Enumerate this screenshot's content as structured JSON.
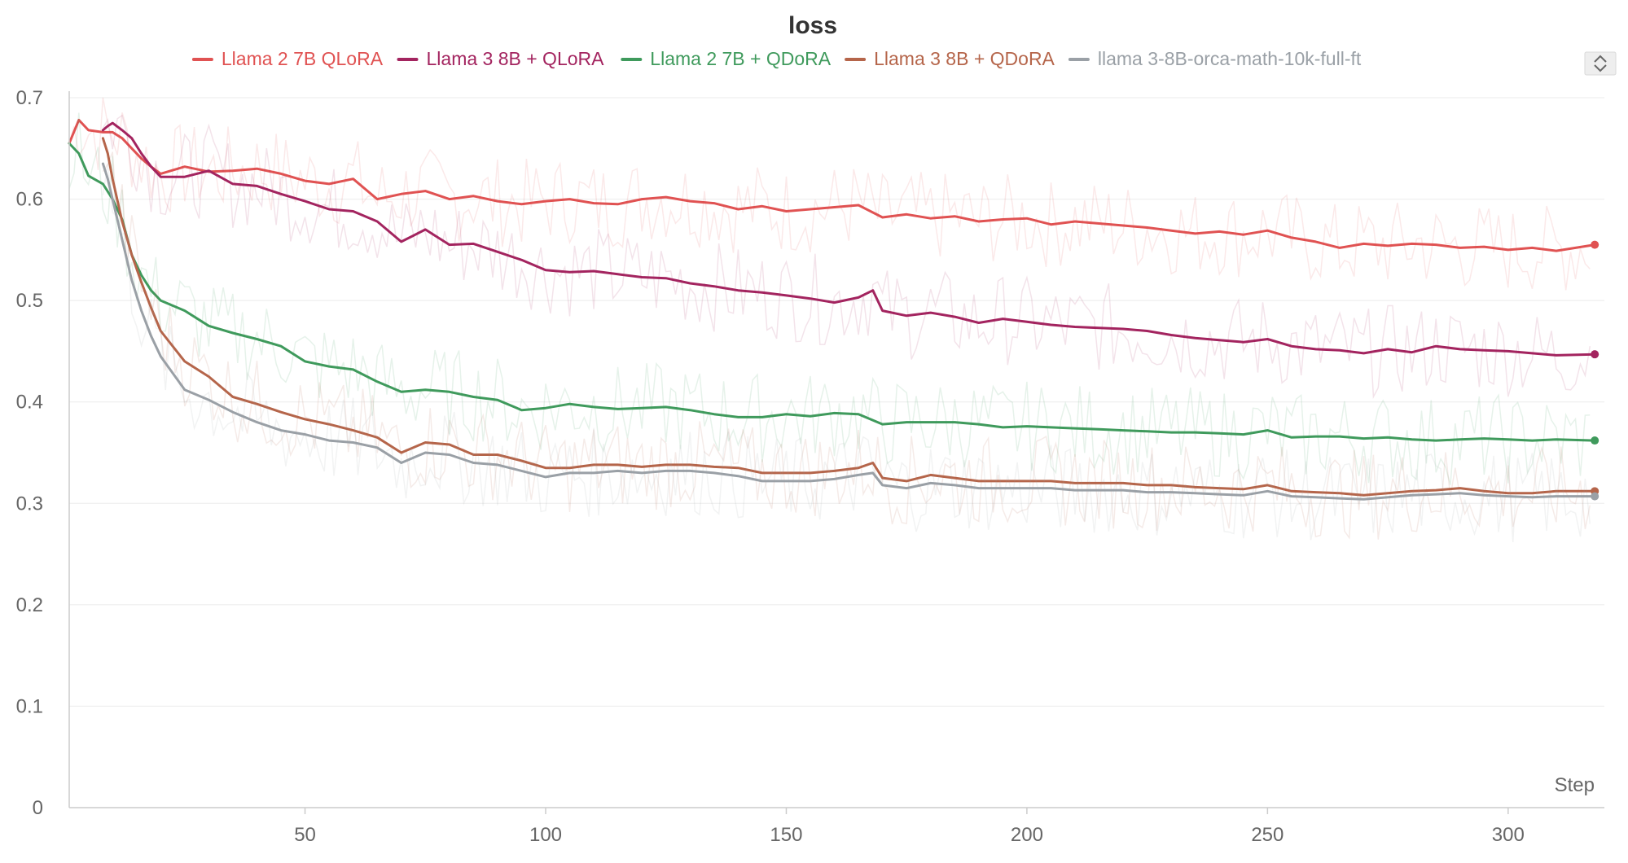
{
  "chart_data": {
    "type": "line",
    "title": "loss",
    "xlabel": "Step",
    "ylabel": "",
    "xlim": [
      1,
      320
    ],
    "ylim": [
      0,
      0.7
    ],
    "xticks": [
      50,
      100,
      150,
      200,
      250,
      300
    ],
    "yticks": [
      0,
      0.1,
      0.2,
      0.3,
      0.4,
      0.5,
      0.6,
      0.7
    ],
    "grid": true,
    "legend_position": "top",
    "series": [
      {
        "name": "Llama 2 7B QLoRA",
        "color": "#e05252",
        "x": [
          1,
          3,
          5,
          8,
          10,
          12,
          14,
          16,
          18,
          20,
          25,
          30,
          35,
          40,
          45,
          50,
          55,
          60,
          65,
          70,
          75,
          80,
          85,
          90,
          95,
          100,
          105,
          110,
          115,
          120,
          125,
          130,
          135,
          140,
          145,
          150,
          155,
          160,
          165,
          170,
          175,
          180,
          185,
          190,
          195,
          200,
          205,
          210,
          215,
          220,
          225,
          230,
          235,
          240,
          245,
          250,
          255,
          260,
          265,
          270,
          275,
          280,
          285,
          290,
          295,
          300,
          305,
          310,
          318
        ],
        "y": [
          0.655,
          0.678,
          0.668,
          0.666,
          0.666,
          0.66,
          0.65,
          0.64,
          0.632,
          0.625,
          0.632,
          0.627,
          0.628,
          0.63,
          0.625,
          0.618,
          0.615,
          0.62,
          0.6,
          0.605,
          0.608,
          0.6,
          0.603,
          0.598,
          0.595,
          0.598,
          0.6,
          0.596,
          0.595,
          0.6,
          0.602,
          0.598,
          0.596,
          0.59,
          0.593,
          0.588,
          0.59,
          0.592,
          0.594,
          0.582,
          0.585,
          0.581,
          0.583,
          0.578,
          0.58,
          0.581,
          0.575,
          0.578,
          0.576,
          0.574,
          0.572,
          0.569,
          0.566,
          0.568,
          0.565,
          0.569,
          0.562,
          0.558,
          0.552,
          0.556,
          0.554,
          0.556,
          0.555,
          0.552,
          0.553,
          0.55,
          0.552,
          0.549,
          0.555
        ]
      },
      {
        "name": "Llama 3 8B + QLoRA",
        "color": "#a3245f",
        "x": [
          8,
          9,
          10,
          12,
          14,
          16,
          18,
          20,
          25,
          30,
          35,
          40,
          45,
          50,
          55,
          60,
          65,
          70,
          75,
          80,
          85,
          90,
          95,
          100,
          105,
          110,
          115,
          120,
          125,
          130,
          135,
          140,
          145,
          150,
          155,
          160,
          165,
          168,
          170,
          175,
          180,
          185,
          190,
          195,
          200,
          205,
          210,
          215,
          220,
          225,
          230,
          235,
          240,
          245,
          250,
          255,
          260,
          265,
          270,
          275,
          280,
          285,
          290,
          295,
          300,
          305,
          310,
          318
        ],
        "y": [
          0.668,
          0.672,
          0.675,
          0.668,
          0.66,
          0.645,
          0.632,
          0.622,
          0.622,
          0.628,
          0.615,
          0.613,
          0.605,
          0.598,
          0.59,
          0.588,
          0.578,
          0.558,
          0.57,
          0.555,
          0.556,
          0.548,
          0.54,
          0.53,
          0.528,
          0.529,
          0.526,
          0.523,
          0.522,
          0.517,
          0.514,
          0.51,
          0.508,
          0.505,
          0.502,
          0.498,
          0.503,
          0.51,
          0.49,
          0.485,
          0.488,
          0.484,
          0.478,
          0.482,
          0.479,
          0.476,
          0.474,
          0.473,
          0.472,
          0.47,
          0.466,
          0.463,
          0.461,
          0.459,
          0.462,
          0.455,
          0.452,
          0.451,
          0.448,
          0.452,
          0.449,
          0.455,
          0.452,
          0.451,
          0.45,
          0.448,
          0.446,
          0.447
        ]
      },
      {
        "name": "Llama 2 7B + QDoRA",
        "color": "#3f9a5c",
        "x": [
          1,
          3,
          5,
          8,
          10,
          12,
          14,
          16,
          18,
          20,
          25,
          30,
          35,
          40,
          45,
          50,
          55,
          60,
          65,
          70,
          75,
          80,
          85,
          90,
          95,
          100,
          105,
          110,
          115,
          120,
          125,
          130,
          135,
          140,
          145,
          150,
          155,
          160,
          165,
          170,
          175,
          180,
          185,
          190,
          195,
          200,
          205,
          210,
          215,
          220,
          225,
          230,
          235,
          240,
          245,
          250,
          255,
          260,
          265,
          270,
          275,
          280,
          285,
          290,
          295,
          300,
          305,
          310,
          318
        ],
        "y": [
          0.655,
          0.645,
          0.623,
          0.615,
          0.6,
          0.58,
          0.545,
          0.525,
          0.51,
          0.5,
          0.49,
          0.475,
          0.468,
          0.462,
          0.455,
          0.44,
          0.435,
          0.432,
          0.42,
          0.41,
          0.412,
          0.41,
          0.405,
          0.402,
          0.392,
          0.394,
          0.398,
          0.395,
          0.393,
          0.394,
          0.395,
          0.392,
          0.388,
          0.385,
          0.385,
          0.388,
          0.386,
          0.389,
          0.388,
          0.378,
          0.38,
          0.38,
          0.38,
          0.378,
          0.375,
          0.376,
          0.375,
          0.374,
          0.373,
          0.372,
          0.371,
          0.37,
          0.37,
          0.369,
          0.368,
          0.372,
          0.365,
          0.366,
          0.366,
          0.364,
          0.365,
          0.363,
          0.362,
          0.363,
          0.364,
          0.363,
          0.362,
          0.363,
          0.362
        ]
      },
      {
        "name": "Llama 3 8B + QDoRA",
        "color": "#b5654a",
        "x": [
          8,
          9,
          10,
          12,
          14,
          16,
          18,
          20,
          25,
          30,
          35,
          40,
          45,
          50,
          55,
          60,
          65,
          70,
          75,
          80,
          85,
          90,
          95,
          100,
          105,
          110,
          115,
          120,
          125,
          130,
          135,
          140,
          145,
          150,
          155,
          160,
          165,
          168,
          170,
          175,
          180,
          185,
          190,
          195,
          200,
          205,
          210,
          215,
          220,
          225,
          230,
          235,
          240,
          245,
          250,
          255,
          260,
          265,
          270,
          275,
          280,
          285,
          290,
          295,
          300,
          305,
          310,
          318
        ],
        "y": [
          0.66,
          0.645,
          0.62,
          0.578,
          0.545,
          0.518,
          0.493,
          0.47,
          0.44,
          0.425,
          0.405,
          0.398,
          0.39,
          0.383,
          0.378,
          0.372,
          0.365,
          0.35,
          0.36,
          0.358,
          0.348,
          0.348,
          0.342,
          0.335,
          0.335,
          0.338,
          0.338,
          0.336,
          0.338,
          0.338,
          0.336,
          0.335,
          0.33,
          0.33,
          0.33,
          0.332,
          0.335,
          0.34,
          0.325,
          0.322,
          0.328,
          0.325,
          0.322,
          0.322,
          0.322,
          0.322,
          0.32,
          0.32,
          0.32,
          0.318,
          0.318,
          0.316,
          0.315,
          0.314,
          0.318,
          0.312,
          0.311,
          0.31,
          0.308,
          0.31,
          0.312,
          0.313,
          0.315,
          0.312,
          0.31,
          0.31,
          0.312,
          0.312
        ]
      },
      {
        "name": "llama 3-8B-orca-math-10k-full-ft",
        "color": "#9aa0a6",
        "x": [
          8,
          9,
          10,
          12,
          14,
          16,
          18,
          20,
          25,
          30,
          35,
          40,
          45,
          50,
          55,
          60,
          65,
          70,
          75,
          80,
          85,
          90,
          95,
          100,
          105,
          110,
          115,
          120,
          125,
          130,
          135,
          140,
          145,
          150,
          155,
          160,
          165,
          168,
          170,
          175,
          180,
          185,
          190,
          195,
          200,
          205,
          210,
          215,
          220,
          225,
          230,
          235,
          240,
          245,
          250,
          255,
          260,
          265,
          270,
          275,
          280,
          285,
          290,
          295,
          300,
          305,
          310,
          318
        ],
        "y": [
          0.635,
          0.62,
          0.6,
          0.56,
          0.52,
          0.49,
          0.465,
          0.445,
          0.412,
          0.402,
          0.39,
          0.38,
          0.372,
          0.368,
          0.362,
          0.36,
          0.355,
          0.34,
          0.35,
          0.348,
          0.34,
          0.338,
          0.332,
          0.326,
          0.33,
          0.33,
          0.332,
          0.33,
          0.332,
          0.332,
          0.33,
          0.327,
          0.322,
          0.322,
          0.322,
          0.324,
          0.328,
          0.33,
          0.318,
          0.315,
          0.32,
          0.318,
          0.315,
          0.315,
          0.315,
          0.315,
          0.313,
          0.313,
          0.313,
          0.311,
          0.311,
          0.31,
          0.309,
          0.308,
          0.312,
          0.307,
          0.306,
          0.305,
          0.304,
          0.306,
          0.308,
          0.309,
          0.31,
          0.308,
          0.307,
          0.306,
          0.307,
          0.307
        ]
      }
    ]
  }
}
